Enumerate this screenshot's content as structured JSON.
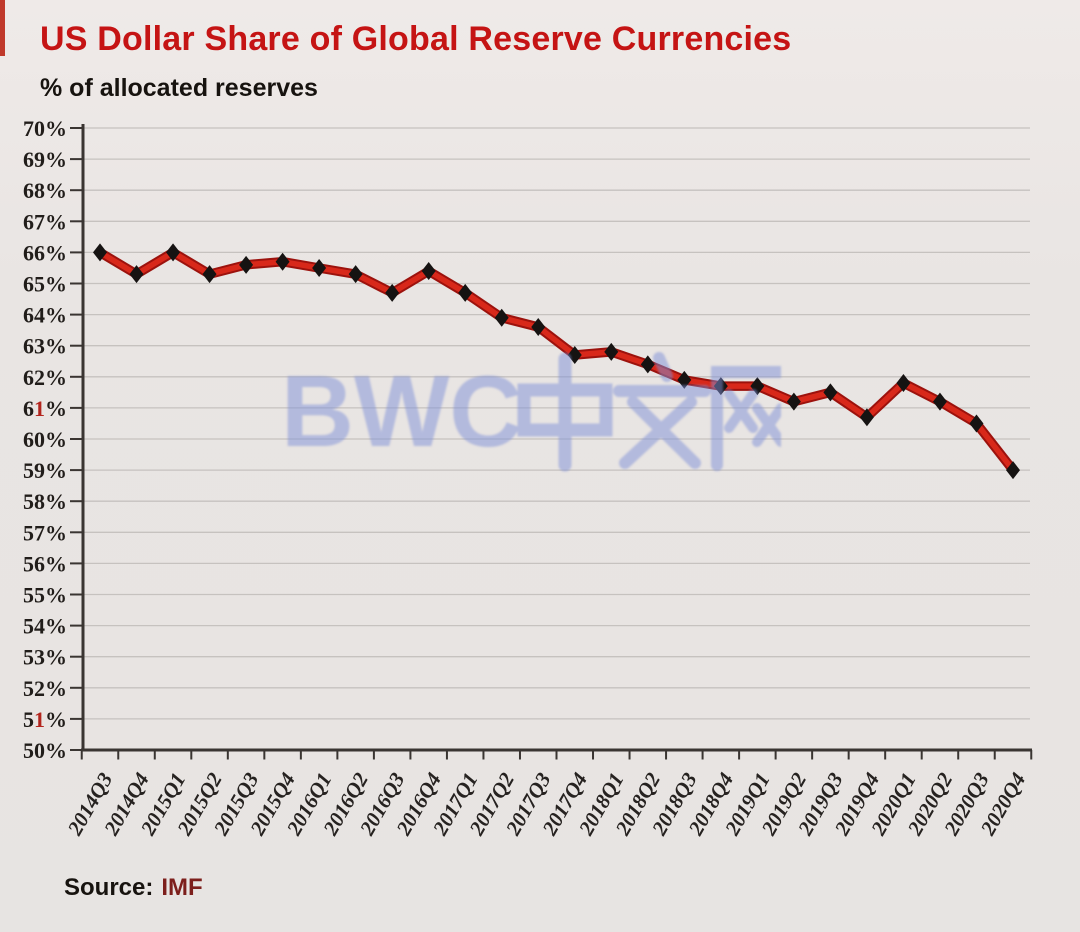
{
  "page": {
    "title": "US Dollar Share of Global Reserve Currencies",
    "subtitle": "% of allocated reserves",
    "source_label": "Source:",
    "source_value": "IMF",
    "watermark": "BWC中文网",
    "colors": {
      "title_red": "#c51414",
      "line_red": "#d8281a",
      "line_edge_red": "#9c120d",
      "marker_black": "#161312",
      "axis": "#3a3532",
      "gridline": "#c6c2bf",
      "ytick_highlight_red": "#b3251e",
      "watermark_blue": "#7e8fd8",
      "background": "#e8e5e2"
    }
  },
  "chart_data": {
    "type": "line",
    "title": "US Dollar Share of Global Reserve Currencies",
    "subtitle": "% of allocated reserves",
    "source": "Source: IMF",
    "xlabel": "",
    "ylabel": "% of allocated reserves",
    "categories": [
      "2014Q3",
      "2014Q4",
      "2015Q1",
      "2015Q2",
      "2015Q3",
      "2015Q4",
      "2016Q1",
      "2016Q2",
      "2016Q3",
      "2016Q4",
      "2017Q1",
      "2017Q2",
      "2017Q3",
      "2017Q4",
      "2018Q1",
      "2018Q2",
      "2018Q3",
      "2018Q4",
      "2019Q1",
      "2019Q2",
      "2019Q3",
      "2019Q4",
      "2020Q1",
      "2020Q2",
      "2020Q3",
      "2020Q4"
    ],
    "series": [
      {
        "name": "US dollar share of allocated reserves",
        "values": [
          66.0,
          65.3,
          66.0,
          65.3,
          65.6,
          65.7,
          65.5,
          65.3,
          64.7,
          65.4,
          64.7,
          63.9,
          63.6,
          62.7,
          62.8,
          62.4,
          61.9,
          61.7,
          61.7,
          61.2,
          61.5,
          60.7,
          61.8,
          61.2,
          60.5,
          59.0
        ]
      }
    ],
    "ylim": [
      50,
      70
    ],
    "ytick_step": 1,
    "ytick_labels": [
      "70%",
      "69%",
      "68%",
      "67%",
      "66%",
      "65%",
      "64%",
      "63%",
      "62%",
      "61%",
      "60%",
      "59%",
      "58%",
      "57%",
      "56%",
      "55%",
      "54%",
      "53%",
      "52%",
      "51%",
      "50%"
    ],
    "highlighted_yticks": [
      "61%",
      "51%"
    ],
    "grid": true,
    "legend": false,
    "marker": "diamond"
  }
}
